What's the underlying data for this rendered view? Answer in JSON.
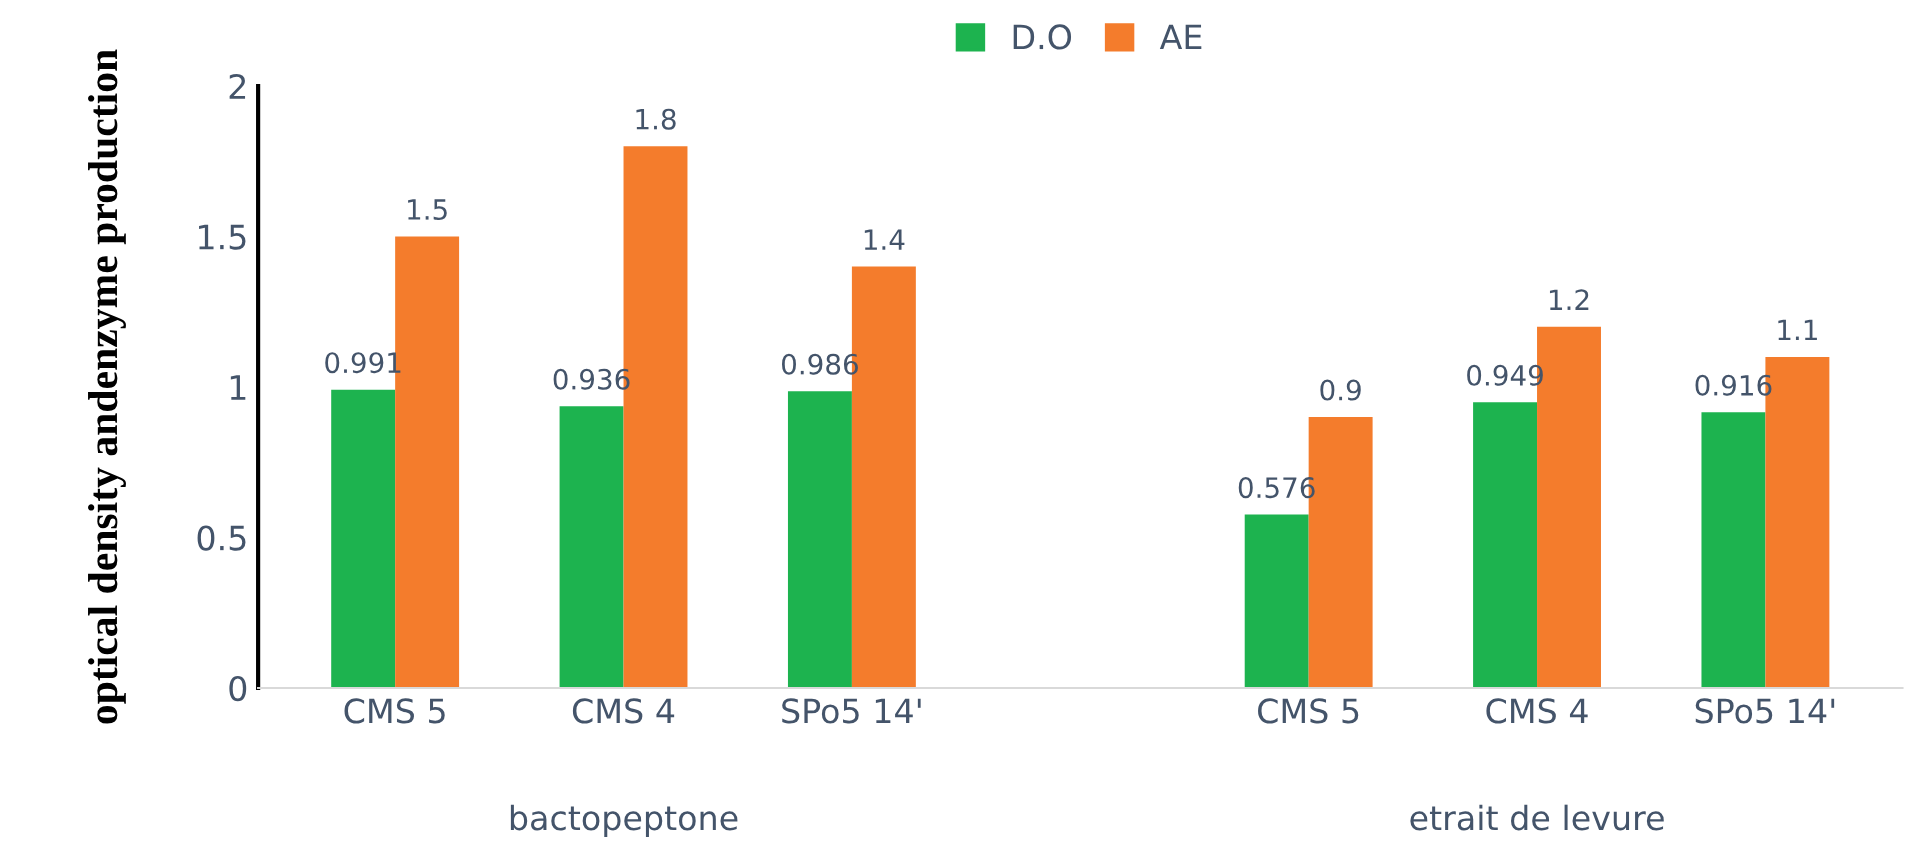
{
  "chart_data": {
    "type": "bar",
    "ylabel": "optical density andenzyme production",
    "categories": [
      "CMS 5",
      "CMS 4",
      "SPo5 14'",
      null,
      "CMS 5",
      "CMS 4",
      "SPo5 14'"
    ],
    "series": [
      {
        "name": "D.O",
        "color": "#1db34f",
        "values": [
          0.991,
          0.936,
          0.986,
          null,
          0.576,
          0.949,
          0.916
        ]
      },
      {
        "name": "AE",
        "color": "#f47c2c",
        "values": [
          1.5,
          1.8,
          1.4,
          null,
          0.9,
          1.2,
          1.1
        ]
      }
    ],
    "ylim": [
      0,
      2
    ],
    "yticks": [
      0,
      0.5,
      1,
      1.5,
      2
    ],
    "data_labels": true,
    "legend": "top",
    "grid": false,
    "annotations": [
      "bactopeptone",
      "etrait de levure"
    ]
  }
}
